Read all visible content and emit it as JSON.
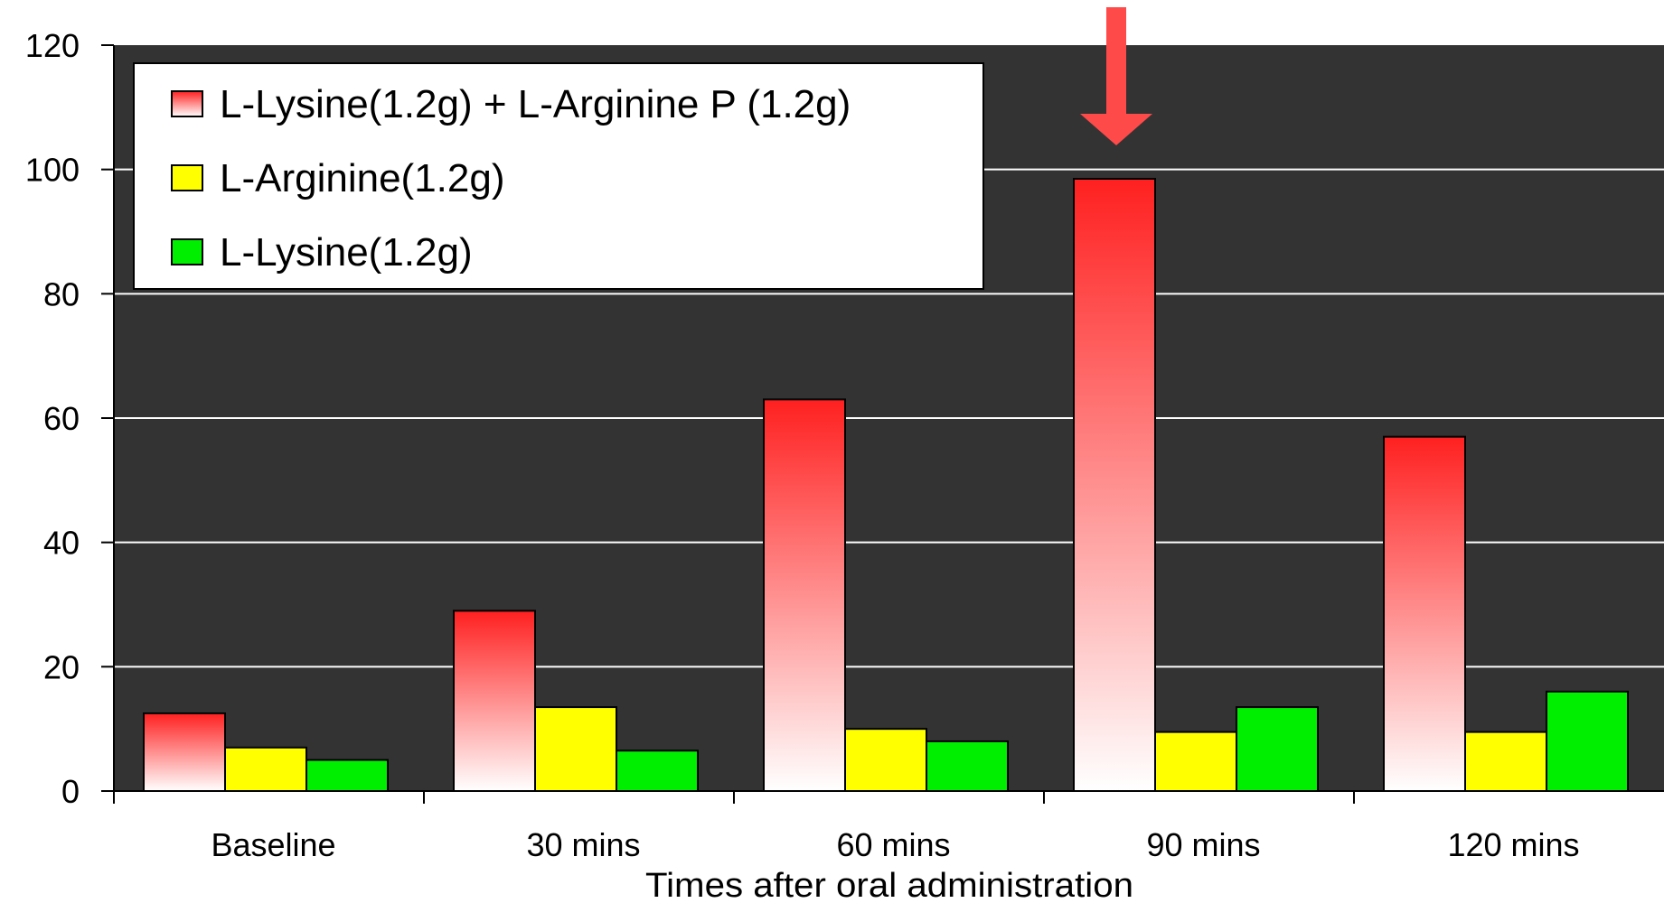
{
  "chart_data": {
    "type": "bar",
    "title": "",
    "xlabel": "Times after oral administration",
    "ylabel": "",
    "ylim": [
      0,
      120
    ],
    "yticks": [
      0,
      20,
      40,
      60,
      80,
      100,
      120
    ],
    "categories": [
      "Baseline",
      "30 mins",
      "60 mins",
      "90 mins",
      "120 mins"
    ],
    "series": [
      {
        "name": "L-Lysine(1.2g) + L-Arginine P (1.2g)",
        "values": [
          12.5,
          29,
          63,
          98.5,
          57
        ]
      },
      {
        "name": "L-Arginine(1.2g)",
        "values": [
          7,
          13.5,
          10,
          9.5,
          9.5
        ]
      },
      {
        "name": "L-Lysine(1.2g)",
        "values": [
          5,
          6.5,
          8,
          13.5,
          16
        ]
      }
    ],
    "colors": {
      "plot_background": "#333333",
      "gridline": "#ffffff",
      "series_1_top": "#ff2020",
      "series_1_bottom": "#ffffff",
      "series_2": "#ffff00",
      "series_3": "#00ee00",
      "arrow": "#ff4a4a"
    },
    "grid": true,
    "legend_position": "top-left",
    "annotation": {
      "type": "arrow-down",
      "target_category": "90 mins",
      "target_series": "L-Lysine(1.2g) + L-Arginine P (1.2g)"
    }
  }
}
